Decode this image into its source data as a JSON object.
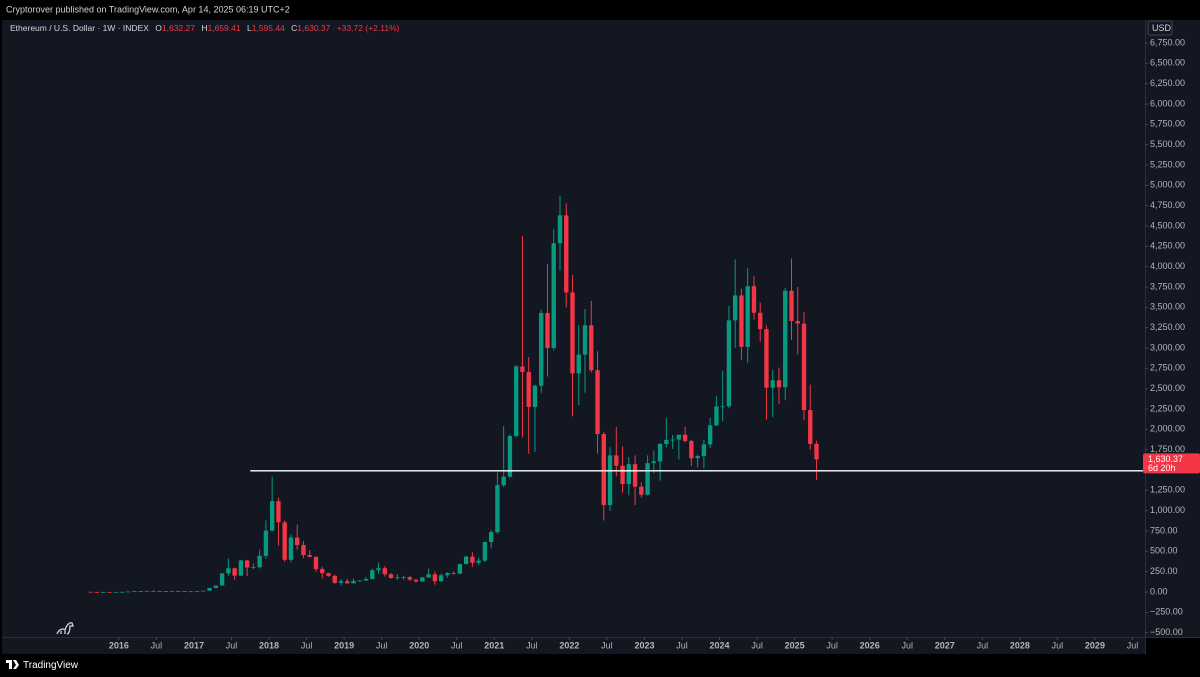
{
  "header": {
    "published": "Cryptorover published on TradingView.com, Apr 14, 2025 06:19 UTC+2"
  },
  "footer": {
    "brand": "TradingView"
  },
  "chart_data": {
    "type": "candlestick",
    "title": "Ethereum / U.S. Dollar · 1W · INDEX",
    "ohlc_legend": [
      {
        "key": "O",
        "value": "1,632.27"
      },
      {
        "key": "H",
        "value": "1,659.41"
      },
      {
        "key": "L",
        "value": "1,595.44"
      },
      {
        "key": "C",
        "value": "1,630.37"
      }
    ],
    "change": "+33.72 (+2.11%)",
    "currency": "USD",
    "up_color": "#089981",
    "down_color": "#f23645",
    "x": [
      "2015-08",
      "2015-09",
      "2015-10",
      "2015-11",
      "2015-12",
      "2016-01",
      "2016-02",
      "2016-03",
      "2016-04",
      "2016-05",
      "2016-06",
      "2016-07",
      "2016-08",
      "2016-09",
      "2016-10",
      "2016-11",
      "2016-12",
      "2017-01",
      "2017-02",
      "2017-03",
      "2017-04",
      "2017-05",
      "2017-06",
      "2017-07",
      "2017-08",
      "2017-09",
      "2017-10",
      "2017-11",
      "2017-12",
      "2018-01",
      "2018-02",
      "2018-03",
      "2018-04",
      "2018-05",
      "2018-06",
      "2018-07",
      "2018-08",
      "2018-09",
      "2018-10",
      "2018-11",
      "2018-12",
      "2019-01",
      "2019-02",
      "2019-03",
      "2019-04",
      "2019-05",
      "2019-06",
      "2019-07",
      "2019-08",
      "2019-09",
      "2019-10",
      "2019-11",
      "2019-12",
      "2020-01",
      "2020-02",
      "2020-03",
      "2020-04",
      "2020-05",
      "2020-06",
      "2020-07",
      "2020-08",
      "2020-09",
      "2020-10",
      "2020-11",
      "2020-12",
      "2021-01",
      "2021-02",
      "2021-03",
      "2021-04",
      "2021-05",
      "2021-06",
      "2021-07",
      "2021-08",
      "2021-09",
      "2021-10",
      "2021-11",
      "2021-12",
      "2022-01",
      "2022-02",
      "2022-03",
      "2022-04",
      "2022-05",
      "2022-06",
      "2022-07",
      "2022-08",
      "2022-09",
      "2022-10",
      "2022-11",
      "2022-12",
      "2023-01",
      "2023-02",
      "2023-03",
      "2023-04",
      "2023-05",
      "2023-06",
      "2023-07",
      "2023-08",
      "2023-09",
      "2023-10",
      "2023-11",
      "2023-12",
      "2024-01",
      "2024-02",
      "2024-03",
      "2024-04",
      "2024-05",
      "2024-06",
      "2024-07",
      "2024-08",
      "2024-09",
      "2024-10",
      "2024-11",
      "2024-12",
      "2025-01",
      "2025-02",
      "2025-03",
      "2025-04"
    ],
    "open": [
      2.8,
      1.3,
      0.7,
      0.9,
      0.87,
      0.93,
      2.2,
      6.3,
      11.4,
      8.8,
      14,
      12.5,
      11.7,
      11.3,
      13.2,
      11.4,
      8.6,
      8.2,
      10.7,
      15.8,
      50,
      79,
      230,
      292,
      201,
      388,
      301,
      305,
      445,
      756,
      1118,
      856,
      396,
      670,
      578,
      455,
      433,
      282,
      232,
      198,
      113,
      133,
      107,
      136,
      141,
      160,
      268,
      293,
      218,
      172,
      180,
      183,
      152,
      130,
      180,
      218,
      133,
      206,
      231,
      225,
      345,
      435,
      360,
      386,
      615,
      737,
      1314,
      1418,
      1918,
      2773,
      2706,
      2275,
      2536,
      3430,
      3000,
      4288,
      4631,
      3683,
      2688,
      2920,
      3280,
      2727,
      1942,
      1070,
      1680,
      1553,
      1328,
      1572,
      1295,
      1196,
      1585,
      1605,
      1821,
      1870,
      1874,
      1934,
      1857,
      1645,
      1671,
      1815,
      2050,
      2282,
      2283,
      3340,
      3647,
      3014,
      3760,
      3433,
      3232,
      2513,
      2603,
      2518,
      3704,
      3332,
      3300,
      2237,
      1822
    ],
    "high": [
      3,
      1.4,
      1.2,
      1,
      1,
      2.4,
      6.7,
      15,
      11.7,
      14.8,
      21,
      14,
      12,
      13.4,
      13.2,
      11.5,
      8.6,
      11.6,
      16,
      53,
      80,
      232,
      410,
      298,
      395,
      395,
      350,
      520,
      880,
      1420,
      1160,
      880,
      710,
      830,
      627,
      515,
      435,
      312,
      236,
      216,
      159,
      161,
      165,
      147,
      185,
      285,
      362,
      320,
      236,
      222,
      198,
      196,
      155,
      185,
      288,
      253,
      227,
      245,
      253,
      348,
      448,
      490,
      420,
      620,
      760,
      1470,
      2040,
      1940,
      2790,
      4380,
      2890,
      2550,
      3470,
      4030,
      4460,
      4870,
      4780,
      3900,
      3280,
      3480,
      3580,
      2960,
      1970,
      1780,
      2030,
      1790,
      1660,
      1680,
      1350,
      1680,
      1740,
      1830,
      2140,
      1930,
      1930,
      2030,
      1870,
      1690,
      1870,
      2140,
      2410,
      2720,
      3520,
      4090,
      3730,
      3980,
      3890,
      3560,
      3280,
      2730,
      2760,
      3740,
      4100,
      3750,
      3440,
      2550,
      1860
    ],
    "low": [
      0.5,
      0.6,
      0.4,
      0.8,
      0.8,
      0.9,
      2.2,
      6.2,
      6.8,
      8.2,
      11,
      10.7,
      10,
      11,
      10.7,
      7.8,
      6.9,
      7.9,
      10.5,
      15.7,
      45,
      79,
      200,
      150,
      200,
      197,
      280,
      290,
      410,
      740,
      570,
      370,
      365,
      520,
      415,
      425,
      250,
      168,
      188,
      101,
      82,
      101,
      104,
      129,
      140,
      158,
      228,
      191,
      163,
      151,
      153,
      138,
      117,
      127,
      176,
      90,
      125,
      177,
      215,
      222,
      340,
      310,
      335,
      370,
      535,
      715,
      1290,
      1400,
      1900,
      1900,
      1700,
      1720,
      2450,
      2650,
      2970,
      3950,
      3500,
      2160,
      2300,
      2450,
      2700,
      1700,
      880,
      1000,
      1420,
      1220,
      1190,
      1070,
      1160,
      1190,
      1460,
      1370,
      1780,
      1760,
      1630,
      1840,
      1550,
      1530,
      1520,
      1770,
      2040,
      2100,
      2260,
      3000,
      2850,
      2820,
      3350,
      3080,
      2120,
      2150,
      2310,
      2360,
      3100,
      2920,
      2110,
      1750,
      1380
    ],
    "close": [
      1.3,
      0.7,
      0.9,
      0.87,
      0.93,
      2.2,
      6.3,
      11.4,
      8.8,
      14,
      12.5,
      11.7,
      11.3,
      13.2,
      11.4,
      8.6,
      8.2,
      10.7,
      15.8,
      50,
      79,
      230,
      292,
      201,
      388,
      301,
      305,
      445,
      756,
      1118,
      856,
      396,
      670,
      578,
      455,
      433,
      282,
      232,
      198,
      113,
      133,
      107,
      136,
      141,
      160,
      268,
      293,
      218,
      172,
      180,
      183,
      152,
      130,
      180,
      218,
      133,
      206,
      231,
      225,
      345,
      435,
      360,
      386,
      615,
      737,
      1314,
      1418,
      1918,
      2773,
      2706,
      2275,
      2536,
      3430,
      3000,
      4288,
      4631,
      3683,
      2688,
      2920,
      3280,
      2727,
      1942,
      1070,
      1680,
      1553,
      1328,
      1572,
      1295,
      1196,
      1585,
      1605,
      1821,
      1870,
      1874,
      1934,
      1857,
      1645,
      1671,
      1815,
      2050,
      2282,
      2283,
      3340,
      3647,
      3014,
      3760,
      3433,
      3232,
      2513,
      2603,
      2518,
      3704,
      3332,
      3300,
      2237,
      1822,
      1630.37
    ],
    "xlim": [
      "2014-06",
      "2029-09"
    ],
    "xticks": [
      {
        "value": "2016-01",
        "label": "2016"
      },
      {
        "value": "2016-07",
        "label": "Jul"
      },
      {
        "value": "2017-01",
        "label": "2017"
      },
      {
        "value": "2017-07",
        "label": "Jul"
      },
      {
        "value": "2018-01",
        "label": "2018"
      },
      {
        "value": "2018-07",
        "label": "Jul"
      },
      {
        "value": "2019-01",
        "label": "2019"
      },
      {
        "value": "2019-07",
        "label": "Jul"
      },
      {
        "value": "2020-01",
        "label": "2020"
      },
      {
        "value": "2020-07",
        "label": "Jul"
      },
      {
        "value": "2021-01",
        "label": "2021"
      },
      {
        "value": "2021-07",
        "label": "Jul"
      },
      {
        "value": "2022-01",
        "label": "2022"
      },
      {
        "value": "2022-07",
        "label": "Jul"
      },
      {
        "value": "2023-01",
        "label": "2023"
      },
      {
        "value": "2023-07",
        "label": "Jul"
      },
      {
        "value": "2024-01",
        "label": "2024"
      },
      {
        "value": "2024-07",
        "label": "Jul"
      },
      {
        "value": "2025-01",
        "label": "2025"
      },
      {
        "value": "2025-07",
        "label": "Jul"
      },
      {
        "value": "2026-01",
        "label": "2026"
      },
      {
        "value": "2026-07",
        "label": "Jul"
      },
      {
        "value": "2027-01",
        "label": "2027"
      },
      {
        "value": "2027-07",
        "label": "Jul"
      },
      {
        "value": "2028-01",
        "label": "2028"
      },
      {
        "value": "2028-07",
        "label": "Jul"
      },
      {
        "value": "2029-01",
        "label": "2029"
      },
      {
        "value": "2029-07",
        "label": "Jul"
      }
    ],
    "ylim": [
      -553,
      7033
    ],
    "yticks": [
      {
        "value": 6750,
        "label": "6,750.00"
      },
      {
        "value": 6500,
        "label": "6,500.00"
      },
      {
        "value": 6250,
        "label": "6,250.00"
      },
      {
        "value": 6000,
        "label": "6,000.00"
      },
      {
        "value": 5750,
        "label": "5,750.00"
      },
      {
        "value": 5500,
        "label": "5,500.00"
      },
      {
        "value": 5250,
        "label": "5,250.00"
      },
      {
        "value": 5000,
        "label": "5,000.00"
      },
      {
        "value": 4750,
        "label": "4,750.00"
      },
      {
        "value": 4500,
        "label": "4,500.00"
      },
      {
        "value": 4250,
        "label": "4,250.00"
      },
      {
        "value": 4000,
        "label": "4,000.00"
      },
      {
        "value": 3750,
        "label": "3,750.00"
      },
      {
        "value": 3500,
        "label": "3,500.00"
      },
      {
        "value": 3250,
        "label": "3,250.00"
      },
      {
        "value": 3000,
        "label": "3,000.00"
      },
      {
        "value": 2750,
        "label": "2,750.00"
      },
      {
        "value": 2500,
        "label": "2,500.00"
      },
      {
        "value": 2250,
        "label": "2,250.00"
      },
      {
        "value": 2000,
        "label": "2,000.00"
      },
      {
        "value": 1750,
        "label": "1,750.00"
      },
      {
        "value": 1250,
        "label": "1,250.00"
      },
      {
        "value": 1000,
        "label": "1,000.00"
      },
      {
        "value": 750,
        "label": "750.00"
      },
      {
        "value": 500,
        "label": "500.00"
      },
      {
        "value": 250,
        "label": "250.00"
      },
      {
        "value": 0,
        "label": "0.00"
      },
      {
        "value": -250,
        "label": "−250.00"
      },
      {
        "value": -500,
        "label": "−500.00"
      }
    ],
    "last_price": {
      "value": 1630.37,
      "label": "1,630.37"
    },
    "countdown": "6d 20h",
    "hline": {
      "value": 1490,
      "start": "2017-10",
      "color": "#ffffff"
    }
  }
}
